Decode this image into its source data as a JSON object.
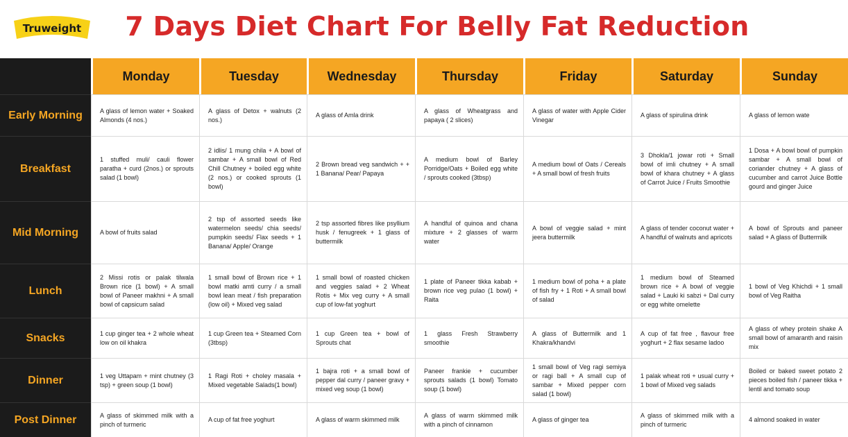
{
  "brand": {
    "name": "Truweight",
    "logo_color": "#f7d117"
  },
  "title": "7 Days Diet Chart For Belly Fat Reduction",
  "colors": {
    "title": "#d62a2a",
    "header_bg": "#f5a623",
    "label_bg": "#1b1b1b",
    "label_text": "#f5a623"
  },
  "days": [
    "Monday",
    "Tuesday",
    "Wednesday",
    "Thursday",
    "Friday",
    "Saturday",
    "Sunday"
  ],
  "meals": [
    {
      "label": "Early Morning",
      "cells": [
        "A glass of lemon water + Soaked Almonds (4 nos.)",
        "A glass of Detox + walnuts (2 nos.)",
        "A glass of Amla drink",
        "A glass of Wheatgrass and papaya ( 2 slices)",
        "A glass of water with Apple Cider Vinegar",
        "A glass of spirulina drink",
        "A glass of lemon wate"
      ]
    },
    {
      "label": "Breakfast",
      "cells": [
        "1 stuffed muli/ cauli flower paratha + curd (2nos.) or sprouts salad (1 bowl)",
        "2 idlis/ 1 mung chila + A bowl of sambar + A small bowl of Red Chill Chutney + boiled egg white (2 nos.) or cooked sprouts (1 bowl)",
        "2 Brown bread veg sandwich + + 1 Banana/ Pear/ Papaya",
        "A medium bowl of Barley Porridge/Oats + Boiled egg white / sprouts cooked (3tbsp)",
        "A medium bowl of Oats / Cereals + A small bowl of fresh fruits",
        "3 Dhokla/1 jowar roti + Small bowl of imli chutney + A small bowl of khara chutney + A glass of Carrot Juice / Fruits Smoothie",
        "1 Dosa + A bowl bowl of pumpkin sambar + A small bowl of coriander chutney + A glass of cucumber and carrot Juice Bottle gourd and ginger Juice"
      ]
    },
    {
      "label": "Mid Morning",
      "cells": [
        "A bowl of fruits salad",
        "2 tsp of assorted seeds like watermelon seeds/ chia seeds/ pumpkin seeds/ Flax seeds + 1 Banana/ Apple/ Orange",
        "2 tsp assorted fibres like psyllium husk / fenugreek + 1 glass of buttermilk",
        "A handful of quinoa and chana mixture + 2 glasses of warm water",
        "A bowl of veggie salad + mint jeera buttermilk",
        "A glass of tender coconut water + A handful of walnuts and apricots",
        "A bowl of Sprouts and paneer salad + A glass of Buttermilk"
      ]
    },
    {
      "label": "Lunch",
      "cells": [
        "2 Missi rotis or palak tilwala Brown rice (1 bowl) + A small bowl of Paneer makhni + A small bowl of capsicum salad",
        "1 small bowl of Brown rice + 1 bowl matki amti curry / a small bowl lean meat / fish preparation (low oil) + Mixed veg salad",
        "1 small bowl of roasted chicken and veggies salad + 2 Wheat Rotis + Mix veg curry + A small cup of low-fat yoghurt",
        "1 plate of Paneer tikka kabab + brown rice veg pulao (1 bowl) + Raita",
        "1 medium bowl of poha + a plate of fish fry + 1 Roti + A small bowl of salad",
        "1 medium bowl of Steamed brown rice + A bowl of veggie salad + Lauki ki sabzi + Dal curry or egg white omelette",
        "1 bowl of Veg Khichdi + 1 small bowl of Veg Raitha"
      ]
    },
    {
      "label": "Snacks",
      "cells": [
        "1 cup ginger tea + 2 whole wheat low on oil khakra",
        "1 cup Green tea + Steamed Corn (3tbsp)",
        "1 cup Green tea + bowl of Sprouts chat",
        "1 glass Fresh Strawberry smoothie",
        "A glass of Buttermilk and 1 Khakra/khandvi",
        "A cup of fat free , flavour free yoghurt + 2 flax sesame ladoo",
        "A glass of whey protein shake A small bowl of amaranth and raisin mix"
      ]
    },
    {
      "label": "Dinner",
      "cells": [
        "1 veg Uttapam + mint chutney (3 tsp) + green soup (1 bowl)",
        "1 Ragi Roti + choley masala + Mixed vegetable Salads(1 bowl)",
        "1 bajra roti + a small bowl of pepper dal curry / paneer gravy + mixed veg soup (1 bowl)",
        "Paneer frankie + cucumber sprouts salads (1 bowl) Tomato soup (1 bowl)",
        "1 small bowl of Veg ragi semiya or ragi ball + A small cup of sambar + Mixed pepper corn salad (1 bowl)",
        "1 palak wheat roti + usual curry + 1 bowl of Mixed veg salads",
        "Boiled or baked sweet potato 2 pieces boiled fish / paneer tikka + lentil and tomato soup"
      ]
    },
    {
      "label": "Post Dinner",
      "cells": [
        "A glass of skimmed milk with a pinch of turmeric",
        "A cup of fat free yoghurt",
        "A glass of warm skimmed milk",
        "A glass of warm skimmed milk with a pinch of cinnamon",
        "A glass of ginger tea",
        "A glass of skimmed milk with a pinch of turmeric",
        "4 almond soaked in water"
      ]
    }
  ]
}
